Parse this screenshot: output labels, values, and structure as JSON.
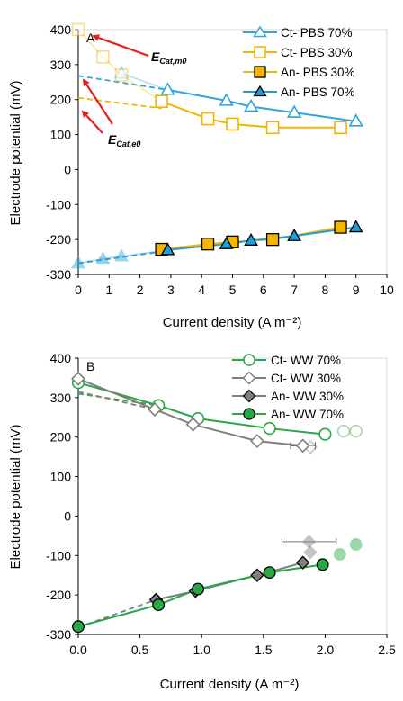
{
  "colors": {
    "ct_pbs70": "#2fa5d8",
    "ct_pbs30": "#f5b400",
    "an_pbs30": "#f5b400",
    "an_pbs70": "#1f9fd6",
    "ct_ww70": "#27a844",
    "ct_ww30": "#7f7f7f",
    "an_ww30": "#7f7f7f",
    "an_ww70": "#27a844",
    "arrow": "#e8201b"
  },
  "annotations": {
    "m0_main": "E",
    "m0_sub": "Cat,m0",
    "e0_main": "E",
    "e0_sub": "Cat,e0"
  },
  "chart_data": [
    {
      "type": "scatter",
      "panel_label": "A",
      "xlabel": "Current density (A m⁻²)",
      "ylabel": "Electrode potential (mV)",
      "xlim": [
        0,
        10
      ],
      "ylim": [
        -300,
        400
      ],
      "xticks": [
        0,
        1,
        2,
        3,
        4,
        5,
        6,
        7,
        8,
        9,
        10
      ],
      "yticks": [
        -300,
        -200,
        -100,
        0,
        100,
        200,
        300,
        400
      ],
      "legend_position": "top-right",
      "series": [
        {
          "name": "Ct- PBS 70%",
          "marker": "triangle-open",
          "color": "#2fa5d8",
          "x": [
            2.9,
            4.8,
            5.6,
            7.0,
            9.0
          ],
          "y": [
            228,
            197,
            180,
            163,
            138
          ],
          "faded_x": [
            1.4
          ],
          "faded_y": [
            275
          ],
          "extrapolation": {
            "x": [
              0,
              2.9
            ],
            "y": [
              268,
              228
            ]
          }
        },
        {
          "name": "Ct- PBS 30%",
          "marker": "square-open",
          "color": "#f5b400",
          "x": [
            2.7,
            4.2,
            5.0,
            6.3,
            8.5
          ],
          "y": [
            195,
            145,
            130,
            120,
            120
          ],
          "faded_x": [
            0,
            0.8,
            1.4
          ],
          "faded_y": [
            400,
            322,
            270
          ],
          "extrapolation": {
            "x": [
              0,
              2.7
            ],
            "y": [
              205,
              175
            ]
          }
        },
        {
          "name": "An- PBS 30%",
          "marker": "square-filled",
          "color": "#f5b400",
          "x": [
            2.7,
            4.2,
            5.0,
            6.3,
            8.5
          ],
          "y": [
            -228,
            -213,
            -207,
            -200,
            -165
          ],
          "faded_x": [],
          "faded_y": []
        },
        {
          "name": "An- PBS 70%",
          "marker": "triangle-filled",
          "color": "#1f9fd6",
          "x": [
            2.9,
            4.8,
            5.6,
            7.0,
            9.0
          ],
          "y": [
            -230,
            -213,
            -203,
            -190,
            -165
          ],
          "faded_x": [
            0,
            0.8,
            1.4
          ],
          "faded_y": [
            -268,
            -255,
            -248
          ],
          "extrapolation": {
            "x": [
              0,
              2.9
            ],
            "y": [
              -268,
              -232
            ]
          }
        }
      ]
    },
    {
      "type": "scatter",
      "panel_label": "B",
      "xlabel": "Current density (A m⁻²)",
      "ylabel": "Electrode potential (mV)",
      "xlim": [
        0,
        2.5
      ],
      "ylim": [
        -300,
        400
      ],
      "xticks": [
        0.0,
        0.5,
        1.0,
        1.5,
        2.0,
        2.5
      ],
      "ytick_labels_b": [
        "0.0",
        "0.5",
        "1.0",
        "1.5",
        "2.0",
        "2.5"
      ],
      "yticks": [
        -300,
        -200,
        -100,
        0,
        100,
        200,
        300,
        400
      ],
      "legend_position": "top-right",
      "series": [
        {
          "name": "Ct- WW 70%",
          "marker": "circle-open",
          "color": "#27a844",
          "x": [
            0,
            0.65,
            0.97,
            1.55,
            2.0
          ],
          "y": [
            338,
            280,
            247,
            222,
            207
          ],
          "faded_x": [
            2.15,
            2.25
          ],
          "faded_y": [
            215,
            215
          ],
          "extrapolation": {
            "x": [
              0,
              0.65
            ],
            "y": [
              310,
              280
            ]
          }
        },
        {
          "name": "Ct- WW 30%",
          "marker": "diamond-open",
          "color": "#7f7f7f",
          "x": [
            0,
            0.62,
            0.93,
            1.45,
            1.82
          ],
          "y": [
            348,
            270,
            232,
            190,
            178
          ],
          "faded_x": [
            1.88
          ],
          "faded_y": [
            175
          ],
          "error_x": [
            0,
            0,
            0,
            0,
            0.1
          ],
          "extrapolation": {
            "x": [
              0,
              0.62
            ],
            "y": [
              315,
              270
            ]
          }
        },
        {
          "name": "An- WW 30%",
          "marker": "diamond-filled",
          "color": "#7f7f7f",
          "x": [
            0.63,
            0.95,
            1.45,
            1.82
          ],
          "y": [
            -212,
            -190,
            -150,
            -118
          ],
          "faded_x": [
            1.87,
            1.88
          ],
          "faded_y": [
            -65,
            -92
          ],
          "faded_error_x": [
            0.22,
            0
          ],
          "extrapolation": {
            "x": [
              0,
              0.63
            ],
            "y": [
              -282,
              -212
            ]
          }
        },
        {
          "name": "An- WW 70%",
          "marker": "circle-filled",
          "color": "#27a844",
          "x": [
            0,
            0.65,
            0.97,
            1.55,
            1.98
          ],
          "y": [
            -280,
            -225,
            -185,
            -143,
            -123
          ],
          "faded_x": [
            2.12,
            2.25
          ],
          "faded_y": [
            -97,
            -72
          ]
        }
      ]
    }
  ]
}
